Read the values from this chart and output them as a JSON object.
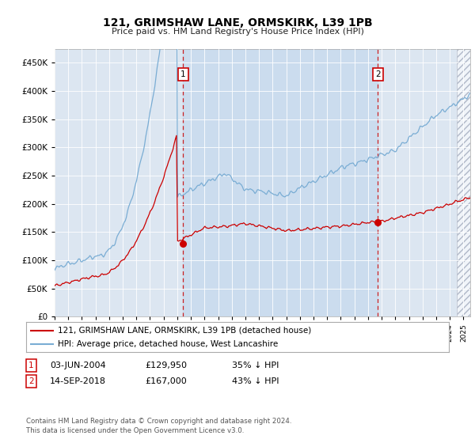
{
  "title": "121, GRIMSHAW LANE, ORMSKIRK, L39 1PB",
  "subtitle": "Price paid vs. HM Land Registry's House Price Index (HPI)",
  "ylim": [
    0,
    475000
  ],
  "yticks": [
    0,
    50000,
    100000,
    150000,
    200000,
    250000,
    300000,
    350000,
    400000,
    450000
  ],
  "xlim_left": 1995.0,
  "xlim_right": 2025.5,
  "marker1": {
    "date_num": 2004.42,
    "price": 129950,
    "label": "1"
  },
  "marker2": {
    "date_num": 2018.71,
    "price": 167000,
    "label": "2"
  },
  "legend_red": "121, GRIMSHAW LANE, ORMSKIRK, L39 1PB (detached house)",
  "legend_blue": "HPI: Average price, detached house, West Lancashire",
  "footer": "Contains HM Land Registry data © Crown copyright and database right 2024.\nThis data is licensed under the Open Government Licence v3.0.",
  "red_color": "#cc0000",
  "blue_color": "#7aadd4",
  "vline_color": "#cc0000",
  "bg_color": "#dce6f1",
  "shade_color": "#c5d8ed",
  "hatch_color": "#c0c0c0"
}
